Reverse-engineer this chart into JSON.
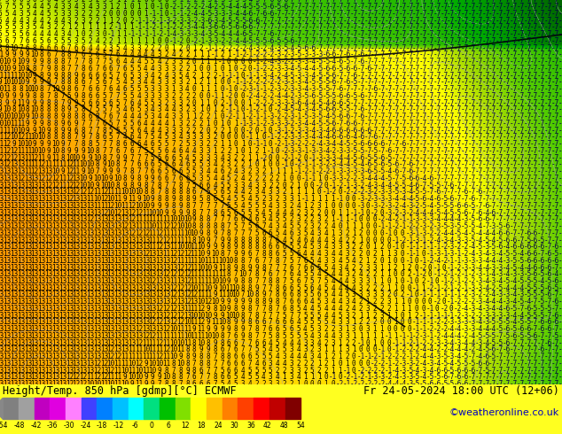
{
  "title_left": "Height/Temp. 850 hPa [gdmp][°C] ECMWF",
  "title_right": "Fr 24-05-2024 18:00 UTC (12+06)",
  "credit": "©weatheronline.co.uk",
  "colorbar_values": [
    -54,
    -48,
    -42,
    -36,
    -30,
    -24,
    -18,
    -12,
    -6,
    0,
    6,
    12,
    18,
    24,
    30,
    36,
    42,
    48,
    54
  ],
  "colorbar_colors": [
    "#808080",
    "#a0a0a0",
    "#c000c0",
    "#e000e0",
    "#ff80ff",
    "#4040ff",
    "#0080ff",
    "#00c0ff",
    "#00ffff",
    "#00e080",
    "#00c000",
    "#80e000",
    "#ffff00",
    "#ffc000",
    "#ff8000",
    "#ff4000",
    "#ff0000",
    "#c00000",
    "#800000"
  ],
  "fig_width": 6.34,
  "fig_height": 4.9,
  "dpi": 100,
  "bottom_bg_color": "#ffff20",
  "font_size_title": 8.5,
  "font_size_credit": 8,
  "font_size_numbers": 5.5,
  "colorbar_label_size": 5.5
}
